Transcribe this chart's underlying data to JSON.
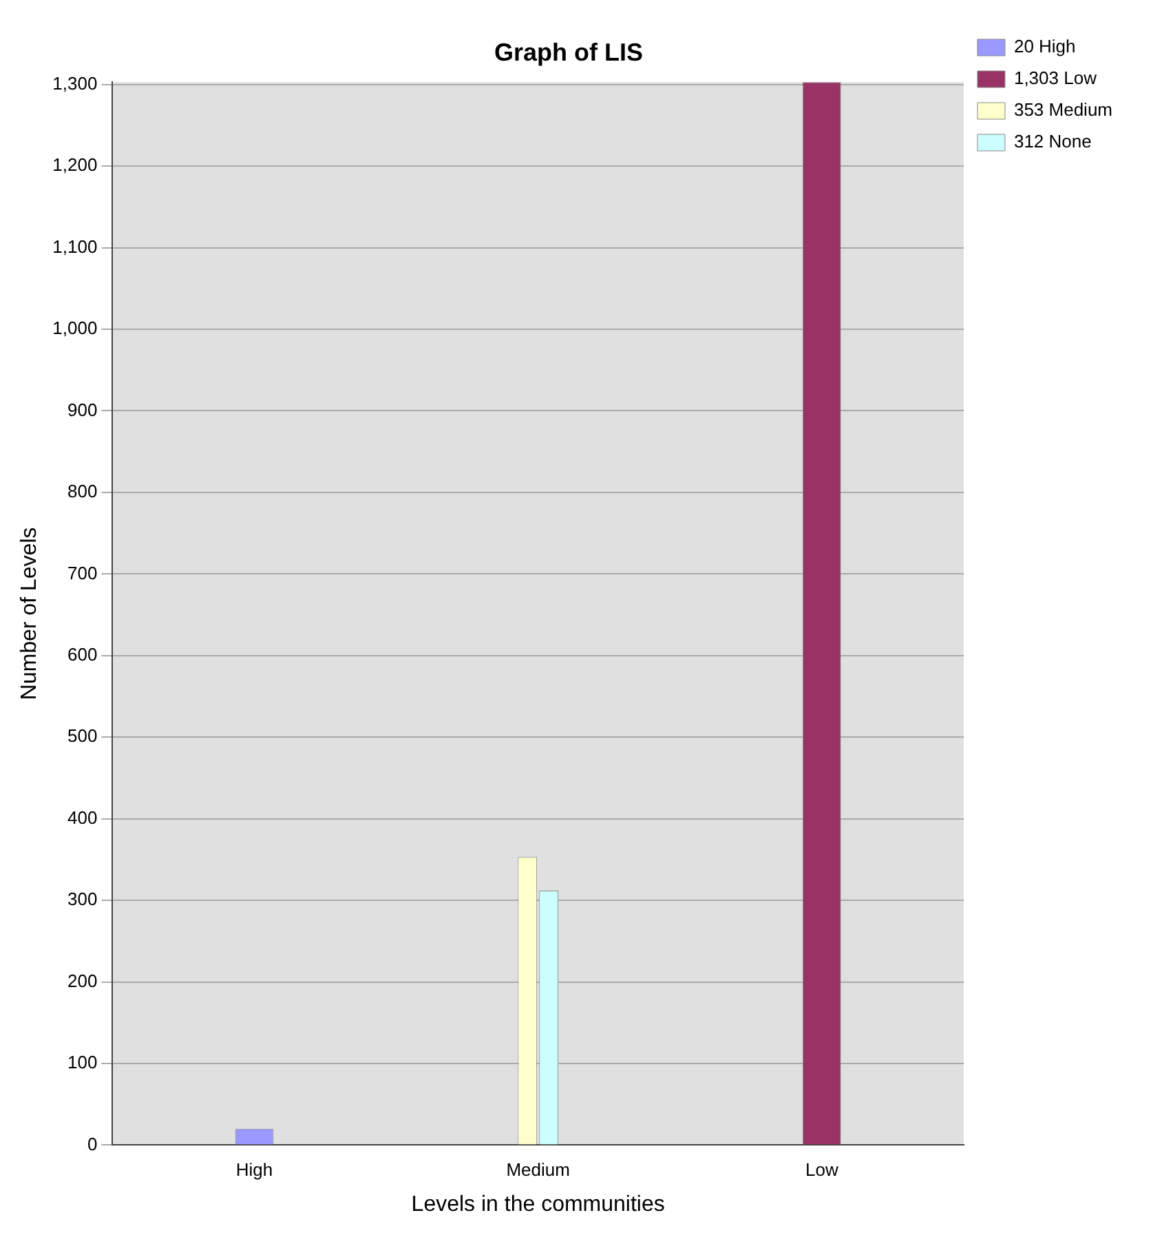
{
  "chart_data": {
    "type": "bar",
    "title": "Graph of LIS",
    "xlabel": "Levels in the communities",
    "ylabel": "Number of Levels",
    "categories": [
      "High",
      "Medium",
      "Low"
    ],
    "series": [
      {
        "name": "20 High",
        "color": "#9999ff",
        "values": [
          20,
          null,
          null
        ]
      },
      {
        "name": "1,303 Low",
        "color": "#993366",
        "values": [
          null,
          null,
          1303
        ]
      },
      {
        "name": "353 Medium",
        "color": "#ffffcc",
        "values": [
          null,
          353,
          null
        ]
      },
      {
        "name": "312 None",
        "color": "#ccffff",
        "values": [
          null,
          312,
          null
        ]
      }
    ],
    "ylim": [
      0,
      1303
    ],
    "yticks": [
      0,
      100,
      200,
      300,
      400,
      500,
      600,
      700,
      800,
      900,
      {
        "value": 1000,
        "label": "1,000"
      },
      {
        "value": 1100,
        "label": "1,100"
      },
      {
        "value": 1200,
        "label": "1,200"
      },
      {
        "value": 1300,
        "label": "1,300"
      }
    ],
    "grid": "y",
    "legend": "top right"
  }
}
